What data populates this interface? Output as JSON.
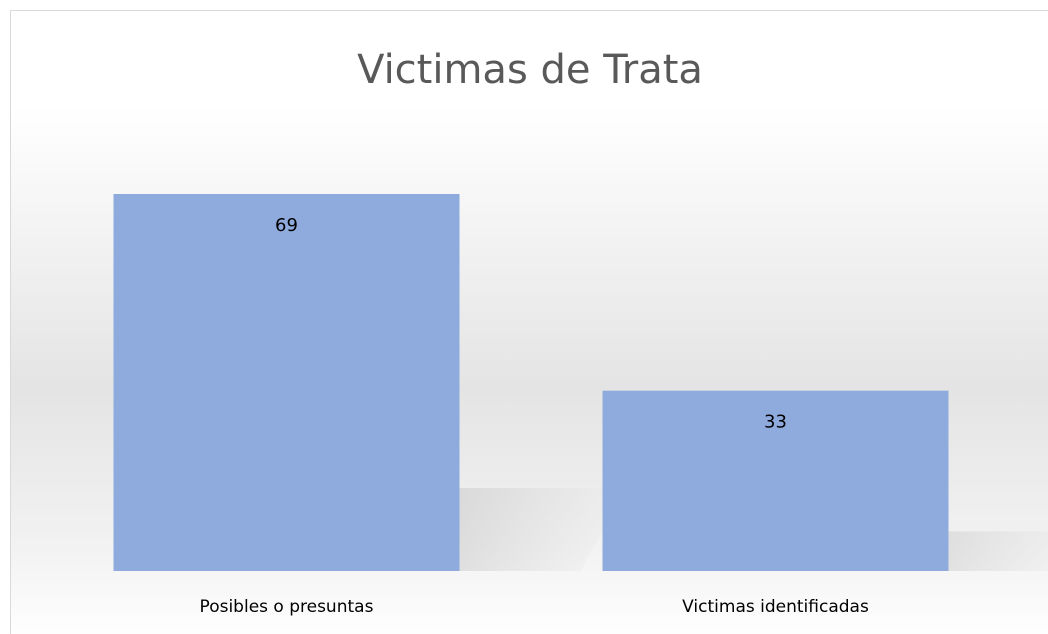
{
  "chart_data": {
    "type": "bar",
    "title": "Victimas de Trata",
    "categories": [
      "Posibles o presuntas",
      "Victimas identificadas"
    ],
    "values": [
      69,
      33
    ],
    "color": "#8faadc"
  }
}
